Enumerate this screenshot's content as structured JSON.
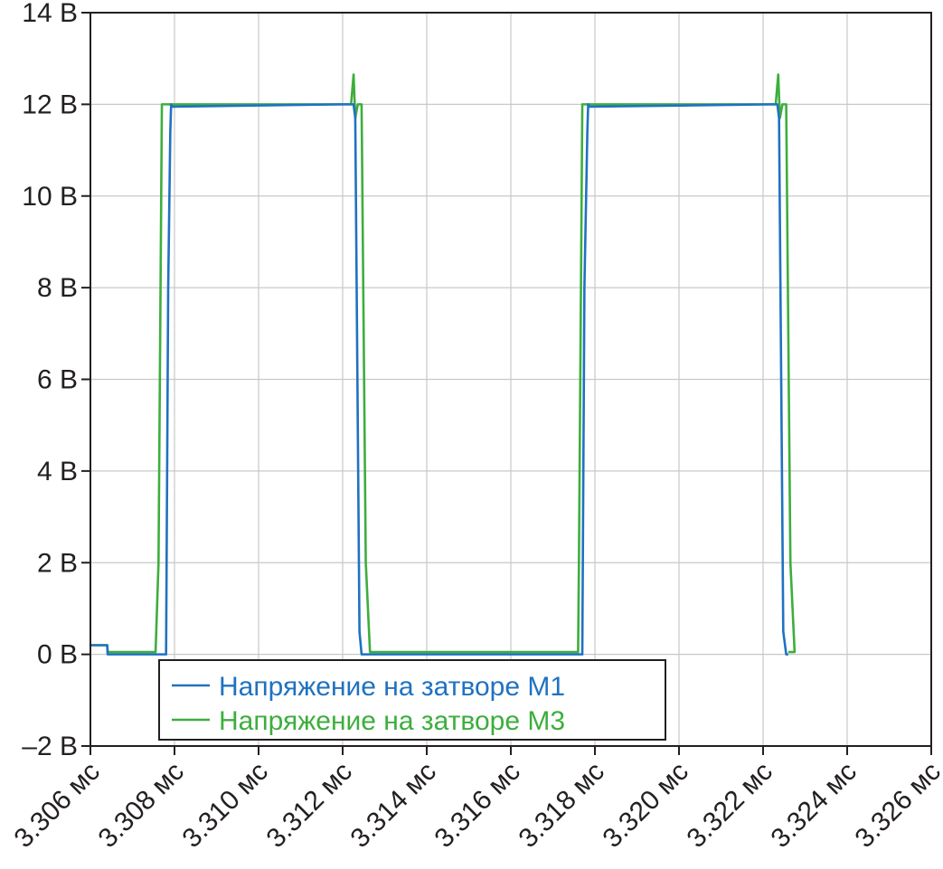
{
  "chart_data": {
    "type": "line",
    "title": "",
    "xlabel": "",
    "ylabel": "",
    "xlim": [
      3.306,
      3.326
    ],
    "ylim": [
      -2,
      14
    ],
    "grid": true,
    "legend_position": "bottom-left",
    "x_ticks": [
      {
        "value": 3.306,
        "label": "3.306 мс"
      },
      {
        "value": 3.308,
        "label": "3.308 мс"
      },
      {
        "value": 3.31,
        "label": "3.310 мс"
      },
      {
        "value": 3.312,
        "label": "3.312 мс"
      },
      {
        "value": 3.314,
        "label": "3.314 мс"
      },
      {
        "value": 3.316,
        "label": "3.316 мс"
      },
      {
        "value": 3.318,
        "label": "3.318 мс"
      },
      {
        "value": 3.32,
        "label": "3.320 мс"
      },
      {
        "value": 3.322,
        "label": "3.322 мс"
      },
      {
        "value": 3.324,
        "label": "3.324 мс"
      },
      {
        "value": 3.326,
        "label": "3.326 мс"
      }
    ],
    "y_ticks": [
      {
        "value": 14,
        "label": "14 В"
      },
      {
        "value": 12,
        "label": "12 В"
      },
      {
        "value": 10,
        "label": "10 В"
      },
      {
        "value": 8,
        "label": "8 В"
      },
      {
        "value": 6,
        "label": "6 В"
      },
      {
        "value": 4,
        "label": "4 В"
      },
      {
        "value": 2,
        "label": "2 В"
      },
      {
        "value": 0,
        "label": "0 В"
      },
      {
        "value": -2,
        "label": "–2 В"
      }
    ],
    "series": [
      {
        "name": "Напряжение на затворе М1",
        "color": "#1f72c0",
        "x": [
          3.306,
          3.3064,
          3.30641,
          3.3078,
          3.30785,
          3.3079,
          3.30792,
          3.30795,
          3.312,
          3.31226,
          3.3123,
          3.3124,
          3.31245,
          3.3125,
          3.3177,
          3.31775,
          3.31782,
          3.31784,
          3.31787,
          3.3222,
          3.32234,
          3.32238,
          3.32248,
          3.32255,
          3.3226
        ],
        "y": [
          0.2,
          0.2,
          0.0,
          0.0,
          8.0,
          11.4,
          12.0,
          11.95,
          12.0,
          12.0,
          11.7,
          0.5,
          0.0,
          0.0,
          0.0,
          8.0,
          11.4,
          12.0,
          11.95,
          12.0,
          12.0,
          11.7,
          0.5,
          0.0,
          0.0
        ]
      },
      {
        "name": "Напряжение на затворе М3",
        "color": "#3dae3d",
        "x": [
          3.306,
          3.3064,
          3.30641,
          3.30755,
          3.30762,
          3.3077,
          3.30775,
          3.312,
          3.3122,
          3.31226,
          3.3123,
          3.31236,
          3.31245,
          3.31255,
          3.31265,
          3.3176,
          3.31762,
          3.3177,
          3.31775,
          3.3222,
          3.3223,
          3.32236,
          3.3224,
          3.32246,
          3.32255,
          3.32265,
          3.32275,
          3.3226
        ],
        "y": [
          0.2,
          0.2,
          0.05,
          0.05,
          2.0,
          12.0,
          12.0,
          12.0,
          12.0,
          12.65,
          11.7,
          12.0,
          12.0,
          2.0,
          0.05,
          0.05,
          2.0,
          12.0,
          12.0,
          12.0,
          12.0,
          12.65,
          11.7,
          12.0,
          12.0,
          2.0,
          0.05,
          0.05
        ]
      }
    ]
  }
}
